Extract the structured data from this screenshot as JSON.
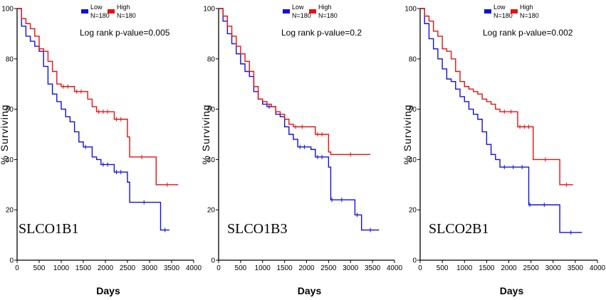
{
  "chart_data": [
    {
      "type": "line",
      "title": "SLCO1B1",
      "pvalue_label": "Log rank p-value=0.005",
      "xlabel": "Days",
      "ylabel": "% Surviving",
      "xlim": [
        0,
        4000
      ],
      "ylim": [
        0,
        100
      ],
      "xticks": [
        "0",
        "500",
        "1000",
        "1500",
        "2000",
        "2500",
        "3000",
        "3500",
        "4000"
      ],
      "yticks": [
        "0",
        "20",
        "40",
        "60",
        "80",
        "100"
      ],
      "legend": [
        {
          "name": "Low",
          "n": "N=180",
          "color": "#1010e0"
        },
        {
          "name": "High",
          "n": "N=180",
          "color": "#e81010"
        }
      ],
      "series": [
        {
          "name": "Low",
          "color": "#1010e0",
          "x": [
            0,
            100,
            200,
            300,
            400,
            500,
            600,
            700,
            800,
            900,
            1000,
            1100,
            1200,
            1300,
            1400,
            1500,
            1600,
            1700,
            1800,
            1900,
            2000,
            2100,
            2200,
            2300,
            2400,
            2500,
            2550,
            3200,
            3250,
            3450
          ],
          "y": [
            100,
            93,
            89,
            87,
            85,
            83,
            77,
            70,
            66,
            63,
            60,
            57,
            55,
            51,
            47,
            45,
            45,
            41,
            40,
            38,
            38,
            38,
            35,
            35,
            35,
            31,
            23,
            23,
            12,
            12
          ]
        },
        {
          "name": "High",
          "color": "#e81010",
          "x": [
            0,
            100,
            200,
            300,
            400,
            500,
            600,
            700,
            800,
            900,
            1000,
            1100,
            1200,
            1300,
            1400,
            1500,
            1600,
            1700,
            1800,
            1900,
            2000,
            2100,
            2200,
            2300,
            2400,
            2500,
            2550,
            3100,
            3150,
            3650
          ],
          "y": [
            100,
            96,
            94,
            92,
            89,
            84,
            83,
            79,
            75,
            70,
            69,
            69,
            69,
            67,
            67,
            67,
            64,
            61,
            59,
            59,
            59,
            59,
            56,
            56,
            56,
            49,
            41,
            41,
            30,
            30
          ]
        }
      ]
    },
    {
      "type": "line",
      "title": "SLCO1B3",
      "pvalue_label": "Log rank p-value=0.2",
      "xlabel": "Days",
      "ylabel": "% Surviving",
      "xlim": [
        0,
        4000
      ],
      "ylim": [
        0,
        100
      ],
      "xticks": [
        "0",
        "500",
        "1000",
        "1500",
        "2000",
        "2500",
        "3000",
        "3500",
        "4000"
      ],
      "yticks": [
        "0",
        "20",
        "40",
        "60",
        "80",
        "100"
      ],
      "legend": [
        {
          "name": "Low",
          "n": "N=180",
          "color": "#1010e0"
        },
        {
          "name": "High",
          "n": "N=180",
          "color": "#e81010"
        }
      ],
      "series": [
        {
          "name": "Low",
          "color": "#1010e0",
          "x": [
            0,
            100,
            200,
            300,
            400,
            500,
            600,
            700,
            800,
            900,
            1000,
            1100,
            1200,
            1300,
            1400,
            1500,
            1600,
            1700,
            1800,
            1900,
            2000,
            2100,
            2200,
            2300,
            2400,
            2500,
            2550,
            2600,
            3000,
            3100,
            3200,
            3250,
            3650
          ],
          "y": [
            100,
            95,
            90,
            86,
            82,
            78,
            75,
            73,
            67,
            64,
            62,
            61,
            61,
            58,
            57,
            53,
            50,
            48,
            45,
            45,
            45,
            44,
            41,
            41,
            41,
            37,
            24,
            24,
            24,
            18,
            18,
            12,
            12
          ]
        },
        {
          "name": "High",
          "color": "#e81010",
          "x": [
            0,
            100,
            200,
            300,
            400,
            500,
            600,
            700,
            800,
            900,
            1000,
            1100,
            1200,
            1300,
            1400,
            1500,
            1600,
            1700,
            1800,
            2000,
            2200,
            2300,
            2400,
            2500,
            2550,
            3450
          ],
          "y": [
            100,
            97,
            93,
            89,
            85,
            82,
            79,
            75,
            69,
            64,
            63,
            62,
            61,
            59,
            58,
            56,
            54,
            53,
            53,
            53,
            50,
            50,
            50,
            43,
            42,
            42
          ]
        }
      ]
    },
    {
      "type": "line",
      "title": "SLCO2B1",
      "pvalue_label": "Log rank p-value=0.002",
      "xlabel": "Days",
      "ylabel": "% Surviving",
      "xlim": [
        0,
        4000
      ],
      "ylim": [
        0,
        100
      ],
      "xticks": [
        "0",
        "500",
        "1000",
        "1500",
        "2000",
        "2500",
        "3000",
        "3500",
        "4000"
      ],
      "yticks": [
        "0",
        "20",
        "40",
        "60",
        "80",
        "100"
      ],
      "legend": [
        {
          "name": "Low",
          "n": "N=180",
          "color": "#1010e0"
        },
        {
          "name": "High",
          "n": "N=180",
          "color": "#e81010"
        }
      ],
      "series": [
        {
          "name": "Low",
          "color": "#1010e0",
          "x": [
            0,
            100,
            200,
            300,
            400,
            500,
            600,
            700,
            800,
            900,
            1000,
            1100,
            1200,
            1300,
            1400,
            1500,
            1600,
            1700,
            1800,
            2000,
            2200,
            2400,
            2450,
            2500,
            3100,
            3150,
            3650
          ],
          "y": [
            100,
            94,
            88,
            84,
            80,
            76,
            72,
            71,
            68,
            65,
            63,
            60,
            58,
            56,
            51,
            46,
            42,
            40,
            37,
            37,
            37,
            37,
            22,
            22,
            22,
            11,
            11
          ]
        },
        {
          "name": "High",
          "color": "#e81010",
          "x": [
            0,
            100,
            200,
            300,
            400,
            500,
            600,
            700,
            800,
            900,
            1000,
            1100,
            1200,
            1300,
            1400,
            1500,
            1600,
            1700,
            1800,
            2000,
            2100,
            2200,
            2300,
            2400,
            2500,
            2550,
            3100,
            3150,
            3450
          ],
          "y": [
            100,
            97,
            95,
            91,
            89,
            84,
            83,
            80,
            75,
            71,
            69,
            68,
            67,
            66,
            64,
            63,
            62,
            60,
            59,
            59,
            59,
            53,
            53,
            53,
            53,
            40,
            40,
            30,
            30
          ]
        }
      ]
    }
  ]
}
